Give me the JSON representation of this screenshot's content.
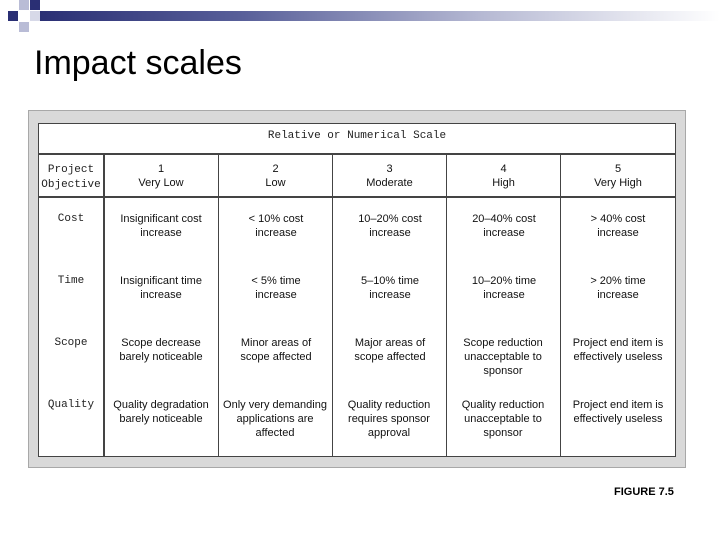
{
  "slide": {
    "title": "Impact scales",
    "figure_label": "FIGURE 7.5"
  },
  "table": {
    "scale_header": "Relative or Numerical Scale",
    "objective_header": [
      "Project",
      "Objective"
    ],
    "columns": [
      {
        "num": "1",
        "label": "Very Low"
      },
      {
        "num": "2",
        "label": "Low"
      },
      {
        "num": "3",
        "label": "Moderate"
      },
      {
        "num": "4",
        "label": "High"
      },
      {
        "num": "5",
        "label": "Very High"
      }
    ],
    "rows": [
      {
        "label": "Cost",
        "cells": [
          "Insignificant cost increase",
          "< 10% cost increase",
          "10–20% cost increase",
          "20–40% cost increase",
          "> 40% cost increase"
        ]
      },
      {
        "label": "Time",
        "cells": [
          "Insignificant time increase",
          "< 5% time increase",
          "5–10% time increase",
          "10–20% time increase",
          "> 20% time increase"
        ]
      },
      {
        "label": "Scope",
        "cells": [
          "Scope decrease barely noticeable",
          "Minor areas of scope affected",
          "Major areas of scope affected",
          "Scope reduction unacceptable to sponsor",
          "Project end item is effectively useless"
        ]
      },
      {
        "label": "Quality",
        "cells": [
          "Quality degradation barely noticeable",
          "Only very demanding applications are affected",
          "Quality reduction requires sponsor approval",
          "Quality reduction unacceptable to sponsor",
          "Project end item is effectively useless"
        ]
      }
    ]
  },
  "colors": {
    "accent_dark": "#2a2f74",
    "accent_mid": "#6a70a8",
    "accent_light": "#b9bcd6"
  }
}
